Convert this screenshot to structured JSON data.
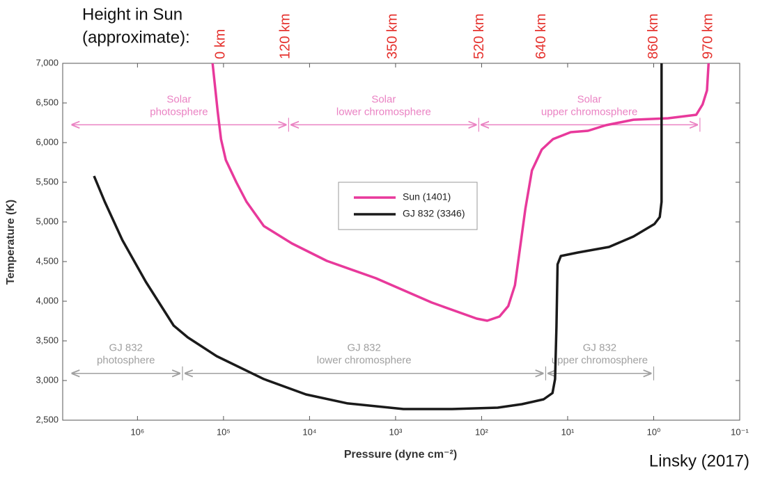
{
  "chart_data": {
    "type": "line",
    "header": [
      "Height in Sun",
      "(approximate):"
    ],
    "credit": "Linsky (2017)",
    "xlabel": "Pressure (dyne cm⁻²)",
    "ylabel": "Temperature (K)",
    "xscale": "log",
    "xlim": [
      7400000,
      0.1
    ],
    "xticks": [
      {
        "value": 1000000,
        "label": "10⁶"
      },
      {
        "value": 100000,
        "label": "10⁵"
      },
      {
        "value": 10000,
        "label": "10⁴"
      },
      {
        "value": 1000,
        "label": "10³"
      },
      {
        "value": 100,
        "label": "10²"
      },
      {
        "value": 10,
        "label": "10¹"
      },
      {
        "value": 1,
        "label": "10⁰"
      },
      {
        "value": 0.1,
        "label": "10⁻¹"
      }
    ],
    "ylim": [
      2500,
      7000
    ],
    "yticks": [
      {
        "value": 2500,
        "label": "2,500"
      },
      {
        "value": 3000,
        "label": "3,000"
      },
      {
        "value": 3500,
        "label": "3,500"
      },
      {
        "value": 4000,
        "label": "4,000"
      },
      {
        "value": 4500,
        "label": "4,500"
      },
      {
        "value": 5000,
        "label": "5,000"
      },
      {
        "value": 5500,
        "label": "5,500"
      },
      {
        "value": 6000,
        "label": "6,000"
      },
      {
        "value": 6500,
        "label": "6,500"
      },
      {
        "value": 7000,
        "label": "7,000"
      }
    ],
    "height_labels": [
      {
        "value": 107000,
        "label": "0 km"
      },
      {
        "value": 19000,
        "label": "120 km"
      },
      {
        "value": 1070,
        "label": "350 km"
      },
      {
        "value": 105,
        "label": "520 km"
      },
      {
        "value": 20,
        "label": "640 km"
      },
      {
        "value": 1.0,
        "label": "860 km"
      },
      {
        "value": 0.23,
        "label": "970 km"
      }
    ],
    "annotations": [
      {
        "text": [
          "Solar",
          "photosphere"
        ],
        "x": [
          6200000,
          17500
        ],
        "y": 6225,
        "color": "#ea82c3"
      },
      {
        "text": [
          "Solar",
          "lower chromosphere"
        ],
        "x": [
          17500,
          108
        ],
        "y": 6225,
        "color": "#ea82c3"
      },
      {
        "text": [
          "Solar",
          "upper chromosphere"
        ],
        "x": [
          108,
          0.29
        ],
        "y": 6225,
        "color": "#ea82c3"
      },
      {
        "text": [
          "GJ 832",
          "photosphere"
        ],
        "x": [
          6200000,
          300000
        ],
        "y": 3090,
        "color": "#a0a0a0"
      },
      {
        "text": [
          "GJ 832",
          "lower chromosphere"
        ],
        "x": [
          300000,
          18
        ],
        "y": 3090,
        "color": "#a0a0a0"
      },
      {
        "text": [
          "GJ 832",
          "upper chromosphere"
        ],
        "x": [
          18,
          1
        ],
        "y": 3090,
        "color": "#a0a0a0"
      }
    ],
    "series": [
      {
        "name": "Sun (1401)",
        "color": "#e8399b",
        "x": [
          134000,
          117000,
          107000,
          94000,
          71000,
          54000,
          34000,
          16000,
          6300,
          1700,
          380,
          114,
          86,
          62,
          49,
          41,
          31,
          26,
          20,
          14.8,
          9.2,
          5.8,
          3.6,
          1.72,
          0.68,
          0.32,
          0.27,
          0.24,
          0.23
        ],
        "values": [
          7000,
          6395,
          6044,
          5781,
          5500,
          5254,
          4947,
          4728,
          4509,
          4290,
          3983,
          3781,
          3754,
          3807,
          3939,
          4202,
          5167,
          5649,
          5912,
          6044,
          6132,
          6149,
          6219,
          6289,
          6307,
          6351,
          6482,
          6658,
          7000
        ]
      },
      {
        "name": "GJ 832 (3346)",
        "color": "#1a1a1a",
        "x": [
          3200000,
          2400000,
          1500000,
          800000,
          380000,
          260000,
          120000,
          34000,
          11000,
          3600,
          810,
          220,
          65,
          34,
          19,
          15,
          14,
          13.5,
          13.1,
          12,
          7.6,
          3.3,
          1.72,
          0.98,
          0.85,
          0.81,
          0.81
        ],
        "values": [
          5579,
          5254,
          4772,
          4246,
          3693,
          3544,
          3307,
          3018,
          2825,
          2711,
          2640,
          2640,
          2658,
          2702,
          2763,
          2842,
          3018,
          3675,
          4465,
          4570,
          4614,
          4684,
          4816,
          4974,
          5061,
          5254,
          7000
        ]
      }
    ]
  }
}
